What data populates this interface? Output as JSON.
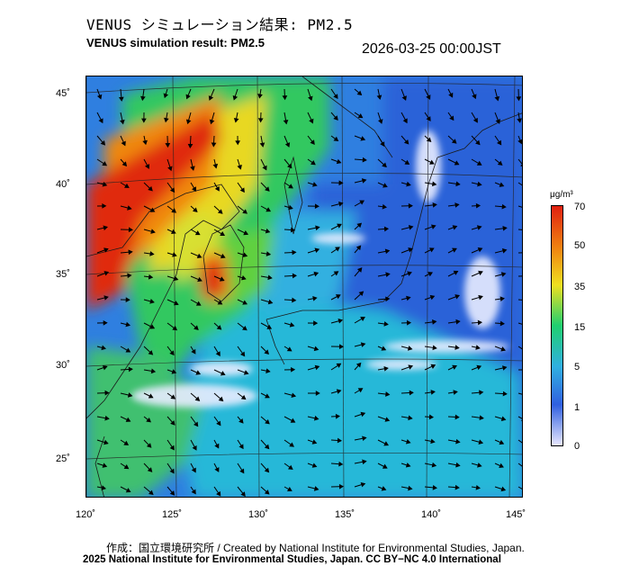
{
  "header": {
    "title_jp": "VENUS シミュレーション結果: PM2.5",
    "title_en": "VENUS simulation result: PM2.5",
    "datetime": "2026-03-25 00:00JST"
  },
  "map": {
    "lat_ticks": [
      "45˚",
      "40˚",
      "35˚",
      "30˚",
      "25˚"
    ],
    "lon_ticks": [
      "120˚",
      "125˚",
      "130˚",
      "135˚",
      "140˚",
      "145˚"
    ]
  },
  "colorbar": {
    "unit": "μg/m³",
    "labels": [
      "70",
      "50",
      "35",
      "15",
      "5",
      "1",
      "0"
    ],
    "colors": [
      "#e8e8ff",
      "#3060e0",
      "#30b0e0",
      "#20d070",
      "#f0e020",
      "#f08010",
      "#e02010"
    ]
  },
  "footer": {
    "credit": "作成：国立環境研究所 / Created by National Institute for Environmental Studies, Japan.",
    "copyright": "2025 National Institute for Environmental Studies, Japan. CC BY−NC 4.0 International"
  }
}
